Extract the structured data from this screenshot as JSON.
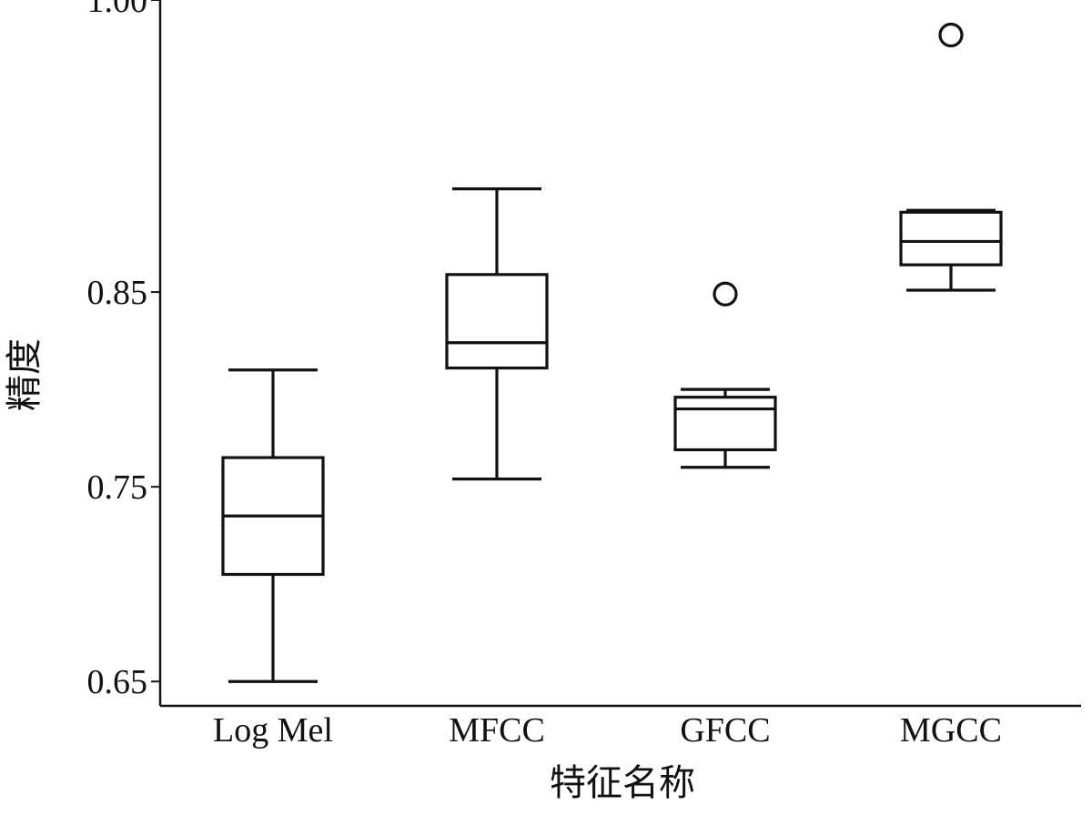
{
  "chart_data": {
    "type": "box",
    "xlabel": "特征名称",
    "ylabel": "精度",
    "ylim": [
      0.6375,
      1.0
    ],
    "yticks": [
      {
        "value": 0.65,
        "label": "0.65"
      },
      {
        "value": 0.75,
        "label": "0.75"
      },
      {
        "value": 0.85,
        "label": "0.85"
      },
      {
        "value": 1.0,
        "label": "1.00"
      }
    ],
    "categories": [
      "Log Mel",
      "MFCC",
      "GFCC",
      "MGCC"
    ],
    "boxes": [
      {
        "category": "Log Mel",
        "whisker_low": 0.65,
        "q1": 0.705,
        "median": 0.735,
        "q3": 0.765,
        "whisker_high": 0.81,
        "outliers": []
      },
      {
        "category": "MFCC",
        "whisker_low": 0.754,
        "q1": 0.811,
        "median": 0.824,
        "q3": 0.859,
        "whisker_high": 0.903,
        "outliers": []
      },
      {
        "category": "GFCC",
        "whisker_low": 0.76,
        "q1": 0.769,
        "median": 0.79,
        "q3": 0.796,
        "whisker_high": 0.8,
        "outliers": [
          0.849
        ]
      },
      {
        "category": "MGCC",
        "whisker_low": 0.851,
        "q1": 0.864,
        "median": 0.876,
        "q3": 0.891,
        "whisker_high": 0.892,
        "outliers": [
          0.982
        ]
      }
    ],
    "grid": false,
    "style": {
      "stroke": "#111111",
      "fill": "#ffffff"
    }
  }
}
